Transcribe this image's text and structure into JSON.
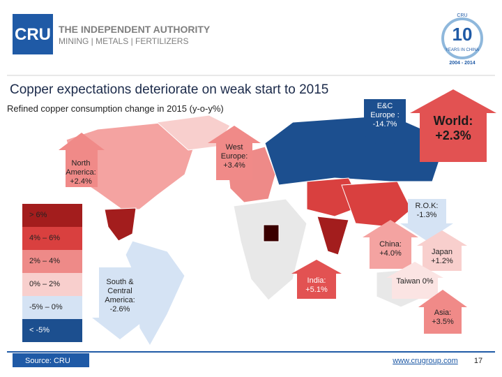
{
  "header": {
    "logo": "CRU",
    "tagline_1": "THE INDEPENDENT AUTHORITY",
    "tagline_2": "MINING | METALS | FERTILIZERS",
    "badge": {
      "top": "CRU",
      "number": "10",
      "text": "YEARS IN CHINA",
      "years": "2004 - 2014"
    }
  },
  "title": "Copper expectations deteriorate on weak start to 2015",
  "subtitle": "Refined copper consumption change in 2015 (y-o-y%)",
  "legend": [
    {
      "label": "> 6%",
      "color": "#a31d1d"
    },
    {
      "label": "4% – 6%",
      "color": "#d9403f"
    },
    {
      "label": "2% – 4%",
      "color": "#ee8a88"
    },
    {
      "label": "0% – 2%",
      "color": "#f8cfcd"
    },
    {
      "label": "-5% – 0%",
      "color": "#d5e3f4"
    },
    {
      "label": "< -5%",
      "color": "#1c4f8f"
    }
  ],
  "callouts": {
    "north_america": "North America: +2.4%",
    "west_europe": "West Europe: +3.4%",
    "ec_europe": "E&C Europe : -14.7%",
    "world": "World: +2.3%",
    "rok": "R.O.K: -1.3%",
    "china": "China: +4.0%",
    "japan": "Japan +1.2%",
    "india": "India: +5.1%",
    "taiwan": "Taiwan 0%",
    "asia": "Asia: +3.5%",
    "south_america": "South & Central America: -2.6%"
  },
  "footer": {
    "source": "Source: CRU",
    "url": "www.crugroup.com",
    "page": "17"
  }
}
